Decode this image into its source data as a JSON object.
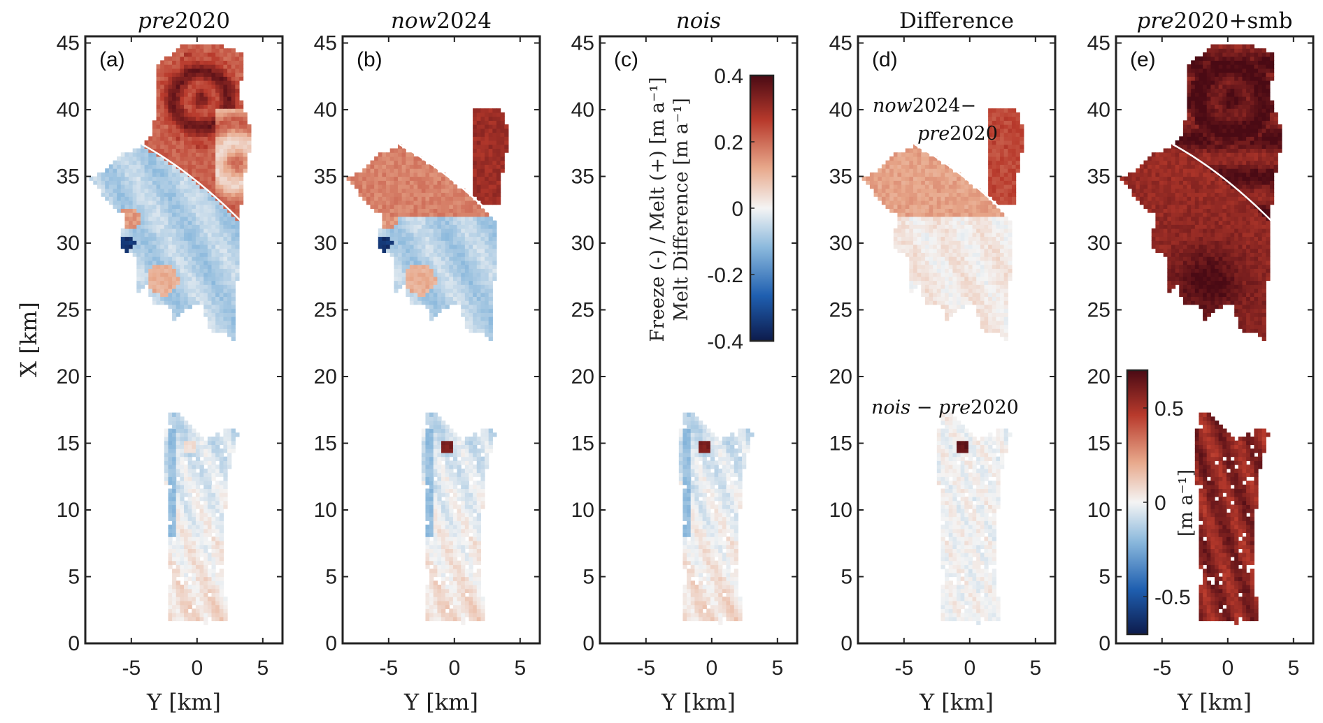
{
  "chart_data": {
    "type": "heatmap",
    "panels": [
      {
        "title_italic": "pre",
        "title_rest": "2020",
        "label": "(a)",
        "field": "baseline"
      },
      {
        "title_italic": "now",
        "title_rest": "2024",
        "label": "(b)",
        "field": "now"
      },
      {
        "title_italic": "nois",
        "title_rest": "",
        "label": "(c)",
        "field": "nois"
      },
      {
        "title_italic": "",
        "title_rest": "Difference",
        "label": "(d)",
        "field": "difference"
      },
      {
        "title_italic": "pre",
        "title_rest": "2020+smb",
        "label": "(e)",
        "field": "smb"
      }
    ],
    "xlabel": "Y [km]",
    "ylabel": "X [km]",
    "x_ticks": [
      "-5",
      "0",
      "5"
    ],
    "y_ticks": [
      "0",
      "5",
      "10",
      "15",
      "20",
      "25",
      "30",
      "35",
      "40",
      "45"
    ],
    "xlim": [
      -8.5,
      6.5
    ],
    "ylim": [
      0,
      45.5
    ],
    "colorbar_main": {
      "label_line1": "Freeze (-) / Melt (+) [m a⁻¹]",
      "label_line2": "Melt Difference [m a⁻¹]",
      "ticks": [
        "0.4",
        "0.2",
        "0",
        "-0.2",
        "-0.4"
      ],
      "range": [
        -0.4,
        0.4
      ]
    },
    "colorbar_smb": {
      "label": "[m a⁻¹]",
      "ticks": [
        "0.5",
        "0",
        "-0.5"
      ],
      "range": [
        -0.7,
        0.7
      ]
    },
    "annotations": {
      "diff_upper_line1_italic": "now",
      "diff_upper_line1_rest": "2024−",
      "diff_upper_line2_italic": "pre",
      "diff_upper_line2_rest": "2020",
      "diff_lower_a": "nois",
      "diff_lower_op": " − ",
      "diff_lower_b": "pre",
      "diff_lower_c": "2020"
    },
    "colormap": [
      "#0d1b4c",
      "#1f5fb0",
      "#8ab8dc",
      "#f4f4f4",
      "#e8a98c",
      "#b83a2c",
      "#4a0a14"
    ]
  }
}
